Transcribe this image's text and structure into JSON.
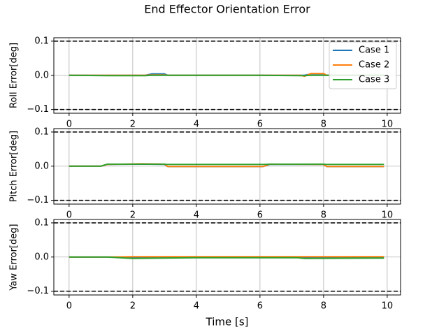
{
  "chart_data": [
    {
      "type": "line",
      "title": "End Effector Orientation Error",
      "ylabel": "Roll Error[deg]",
      "x": [
        0,
        1.2,
        2.4,
        2.6,
        3.0,
        3.1,
        6.0,
        7.3,
        7.4,
        7.6,
        8.0,
        8.1,
        9.9
      ],
      "series": [
        {
          "name": "Case 1",
          "color": "#1f77b4",
          "values": [
            0,
            0,
            0,
            0.004,
            0.004,
            0,
            0,
            0,
            0,
            0.004,
            0.004,
            0,
            0
          ]
        },
        {
          "name": "Case 2",
          "color": "#ff7f0e",
          "values": [
            0,
            0,
            0,
            0.001,
            0.001,
            0,
            0,
            0,
            -0.003,
            0.005,
            0.005,
            0,
            0
          ]
        },
        {
          "name": "Case 3",
          "color": "#2ca02c",
          "values": [
            0,
            -0.001,
            -0.001,
            0,
            0,
            0,
            0,
            -0.001,
            -0.001,
            0,
            0,
            0,
            0
          ]
        }
      ],
      "xlim": [
        -0.48,
        10.42
      ],
      "ylim": [
        -0.111,
        0.11
      ],
      "xticks": [
        0,
        2,
        4,
        6,
        8,
        10
      ],
      "yticks": [
        {
          "value": -0.1,
          "label": "−0.1"
        },
        {
          "value": 0,
          "label": "0.0"
        },
        0.1
      ],
      "threshold_lines": [
        0.1,
        -0.1
      ],
      "grid": true,
      "legend": "upper right"
    },
    {
      "type": "line",
      "ylabel": "Pitch Error[deg]",
      "x": [
        0,
        1.0,
        1.2,
        2.3,
        3.0,
        3.1,
        6.1,
        6.3,
        8.0,
        8.1,
        9.9
      ],
      "series": [
        {
          "color": "#1f77b4",
          "values": [
            0,
            0,
            0.005,
            0.006,
            0.005,
            -0.001,
            -0.001,
            0.005,
            0.005,
            -0.001,
            -0.001
          ]
        },
        {
          "color": "#ff7f0e",
          "values": [
            0,
            0,
            0.005,
            0.007,
            0.006,
            -0.001,
            -0.001,
            0.006,
            0.005,
            -0.001,
            -0.001
          ]
        },
        {
          "color": "#2ca02c",
          "values": [
            0,
            0,
            0.006,
            0.006,
            0.006,
            0.005,
            0.005,
            0.006,
            0.006,
            0.005,
            0.005
          ]
        }
      ],
      "xlim": [
        -0.48,
        10.42
      ],
      "ylim": [
        -0.111,
        0.11
      ],
      "xticks": [
        0,
        2,
        4,
        6,
        8,
        10
      ],
      "yticks": [
        {
          "value": -0.1,
          "label": "−0.1"
        },
        {
          "value": 0,
          "label": "0.0"
        },
        0.1
      ],
      "threshold_lines": [
        0.1,
        -0.1
      ],
      "grid": true
    },
    {
      "type": "line",
      "ylabel": "Yaw Error[deg]",
      "xlabel": "Time [s]",
      "x": [
        0,
        1.2,
        2.0,
        4.0,
        7.2,
        7.4,
        9.9
      ],
      "series": [
        {
          "color": "#1f77b4",
          "values": [
            0,
            0,
            -0.001,
            -0.001,
            -0.001,
            -0.002,
            -0.001
          ]
        },
        {
          "color": "#ff7f0e",
          "values": [
            0,
            0,
            0.001,
            0.001,
            0.001,
            0.001,
            0.001
          ]
        },
        {
          "color": "#2ca02c",
          "values": [
            0,
            0,
            -0.004,
            -0.002,
            -0.002,
            -0.004,
            -0.003
          ]
        }
      ],
      "xlim": [
        -0.48,
        10.42
      ],
      "ylim": [
        -0.111,
        0.11
      ],
      "xticks": [
        0,
        2,
        4,
        6,
        8,
        10
      ],
      "yticks": [
        {
          "value": -0.1,
          "label": "−0.1"
        },
        {
          "value": 0,
          "label": "0.0"
        },
        0.1
      ],
      "threshold_lines": [
        0.1,
        -0.1
      ],
      "grid": true
    }
  ]
}
